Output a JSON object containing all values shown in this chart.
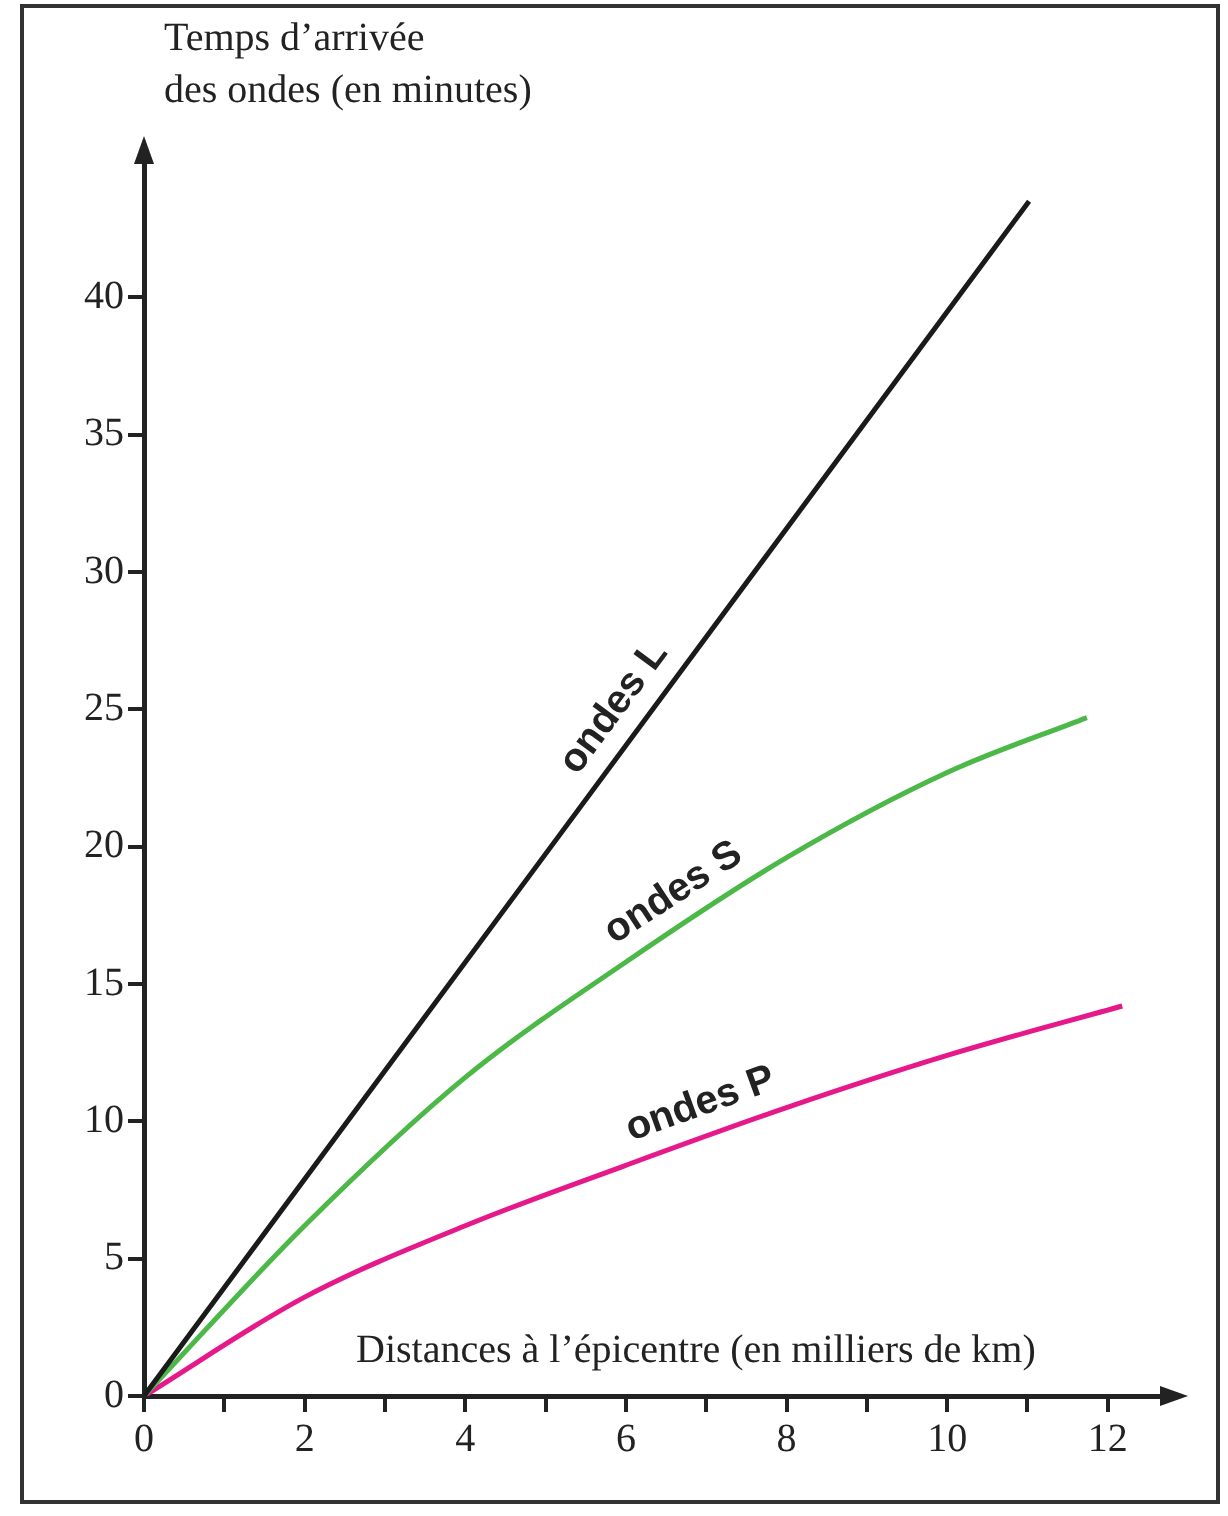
{
  "chart_data": {
    "type": "line",
    "xlabel": "Distances à l’épicentre (en milliers de km)",
    "ylabel": "Temps d’arrivée\ndes ondes (en minutes)",
    "xlim": [
      0,
      12.7
    ],
    "ylim": [
      0,
      45
    ],
    "xticks": [
      0,
      {
        "value": 1,
        "label": null
      },
      2,
      {
        "value": 3,
        "label": null
      },
      4,
      {
        "value": 5,
        "label": null
      },
      6,
      {
        "value": 7,
        "label": null
      },
      8,
      {
        "value": 9,
        "label": null
      },
      10,
      {
        "value": 11,
        "label": null
      },
      12
    ],
    "yticks": [
      0,
      5,
      10,
      15,
      20,
      25,
      30,
      35,
      40
    ],
    "marker": "none",
    "legend": false,
    "series": [
      {
        "name": "ondes L",
        "color": "#1a1a1a",
        "x": [
          0,
          11.02
        ],
        "values": [
          0,
          43.5
        ]
      },
      {
        "name": "ondes S",
        "color": "#4cb848",
        "x": [
          0,
          2,
          4,
          6,
          8,
          10,
          11.74
        ],
        "values": [
          0,
          6.2,
          11.6,
          15.8,
          19.6,
          22.7,
          24.7
        ]
      },
      {
        "name": "ondes P",
        "color": "#e6198a",
        "x": [
          0,
          2,
          4,
          6,
          8,
          10,
          12.18
        ],
        "values": [
          0,
          3.6,
          6.2,
          8.4,
          10.5,
          12.4,
          14.2
        ]
      }
    ]
  }
}
